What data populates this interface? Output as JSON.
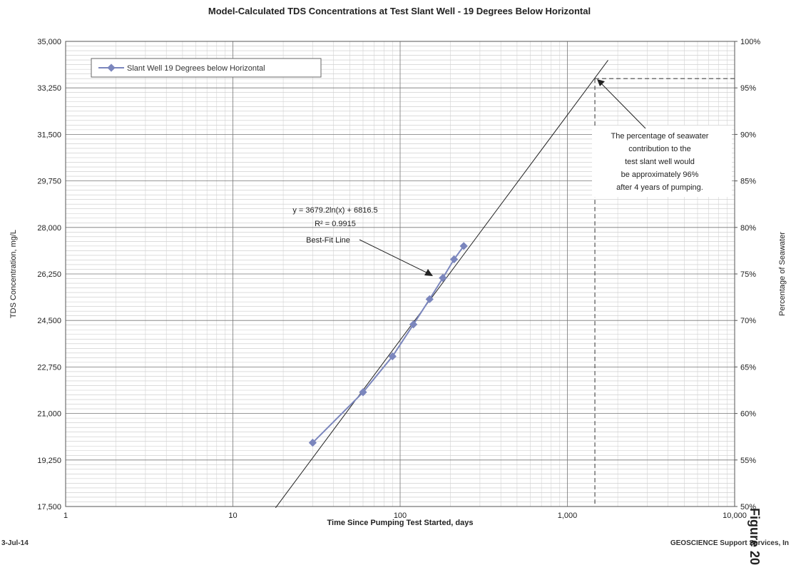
{
  "chart_data": {
    "type": "scatter",
    "title": "Model-Calculated TDS Concentrations at Test Slant Well - 19 Degrees Below Horizontal",
    "xlabel": "Time Since Pumping Test Started, days",
    "ylabel": "TDS Concentration, mg/L",
    "y2label": "Percentage of Seawater",
    "x_scale": "log",
    "xlim": [
      1,
      10000
    ],
    "ylim": [
      17500,
      35000
    ],
    "y2lim": [
      50,
      100
    ],
    "x_ticks": [
      1,
      10,
      100,
      1000,
      10000
    ],
    "x_tick_labels": [
      "1",
      "10",
      "100",
      "1,000",
      "10,000"
    ],
    "y_ticks": [
      17500,
      19250,
      21000,
      22750,
      24500,
      26250,
      28000,
      29750,
      31500,
      33250,
      35000
    ],
    "y_tick_labels": [
      "17,500",
      "19,250",
      "21,000",
      "22,750",
      "24,500",
      "26,250",
      "28,000",
      "29,750",
      "31,500",
      "33,250",
      "35,000"
    ],
    "y2_ticks": [
      50,
      55,
      60,
      65,
      70,
      75,
      80,
      85,
      90,
      95,
      100
    ],
    "y2_tick_labels": [
      "50%",
      "55%",
      "60%",
      "65%",
      "70%",
      "75%",
      "80%",
      "85%",
      "90%",
      "95%",
      "100%"
    ],
    "grid": true,
    "legend_position": "top-left",
    "series": [
      {
        "name": "Slant Well 19 Degrees below Horizontal",
        "color": "#7b86bd",
        "x": [
          30,
          60,
          90,
          120,
          150,
          180,
          210,
          240
        ],
        "y": [
          19900,
          21800,
          23150,
          24350,
          25300,
          26100,
          26800,
          27300
        ]
      }
    ],
    "fit": {
      "equation": "y = 3679.2ln(x) + 6816.5",
      "r2_label": "R² = 0.9915",
      "label": "Best-Fit Line",
      "a": 3679.2,
      "b": 6816.5,
      "x_range": [
        18,
        1750
      ],
      "color": "#222222"
    },
    "reference": {
      "x": 1460,
      "y": 33600
    },
    "annotation_lines": [
      "The percentage of seawater",
      "contribution to the",
      "test slant well would",
      "be approximately 96%",
      "after 4 years of pumping."
    ]
  },
  "footer": {
    "date": "3-Jul-14",
    "credit": "GEOSCIENCE Support Services, In",
    "figure": "Figure 20"
  }
}
